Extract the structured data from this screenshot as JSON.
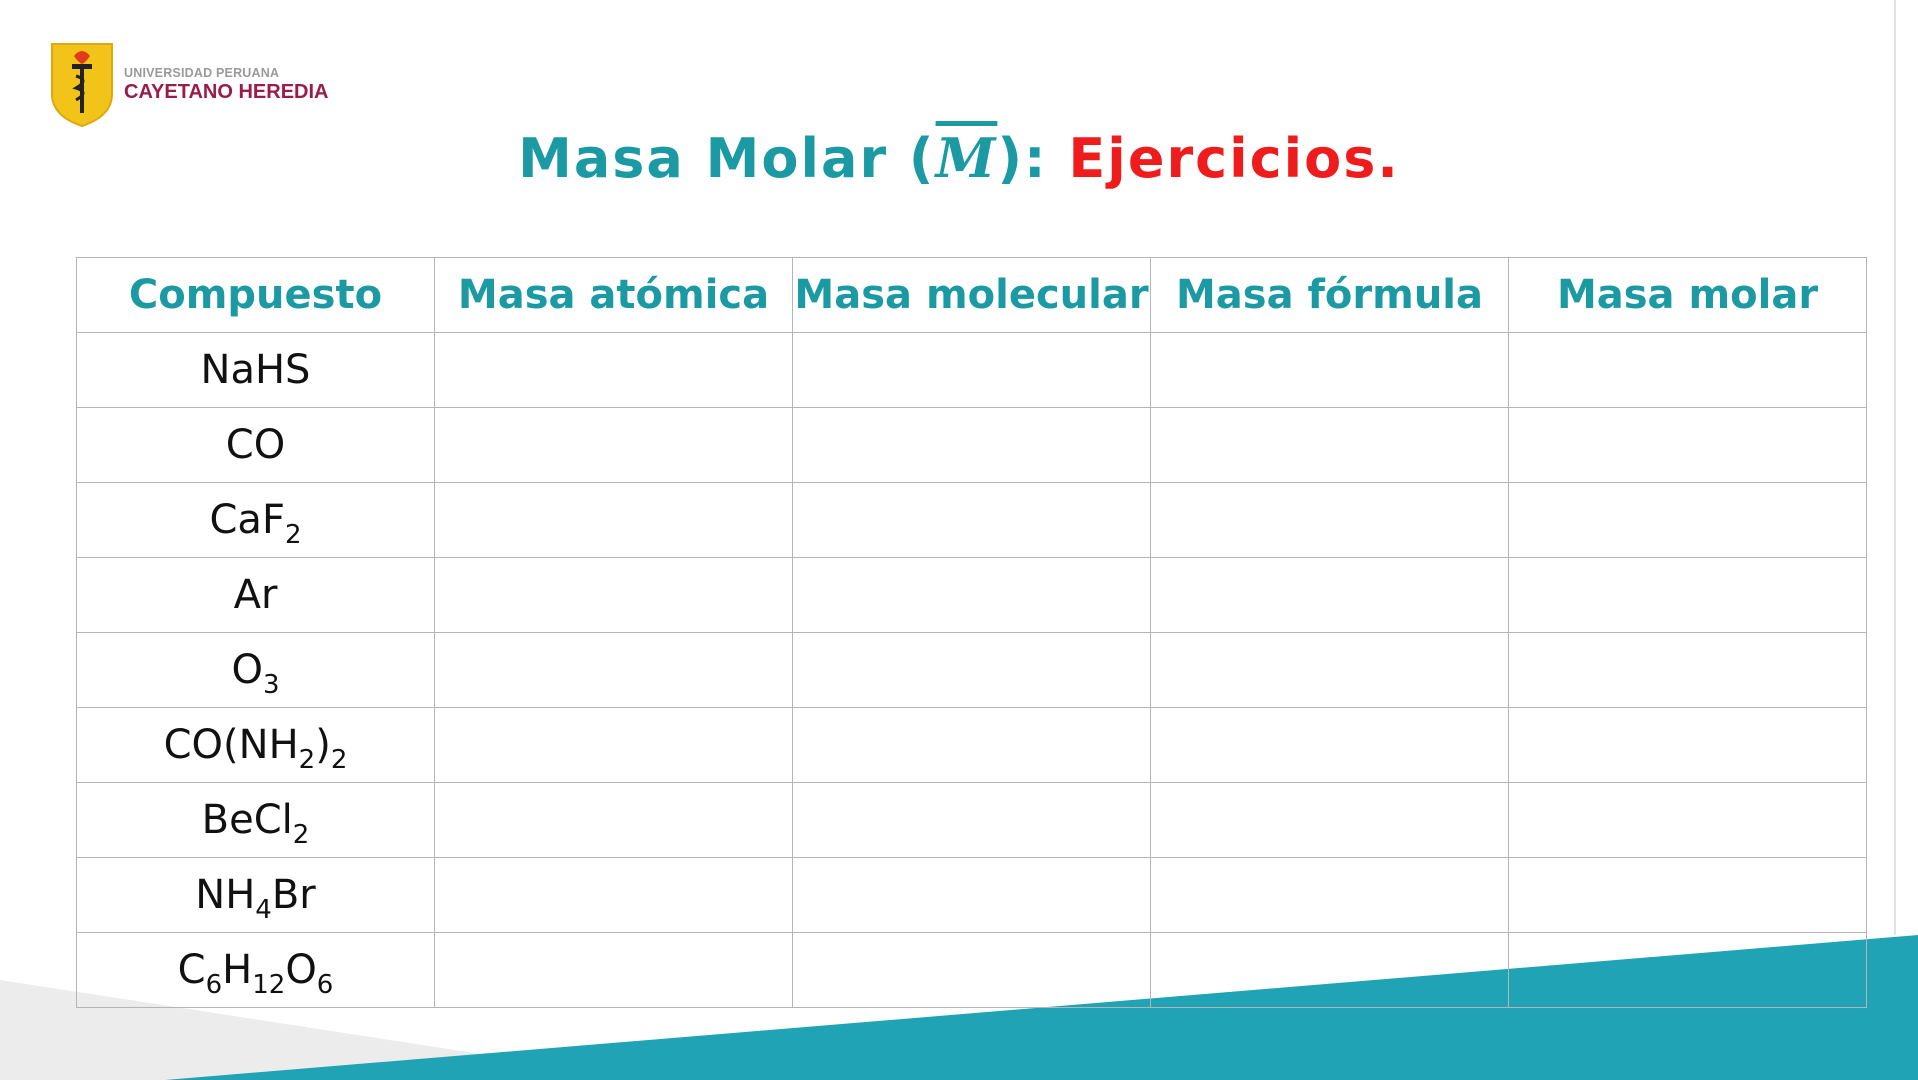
{
  "logo": {
    "line1": "UNIVERSIDAD PERUANA",
    "line2": "CAYETANO HEREDIA"
  },
  "title": {
    "part1": "Masa Molar (",
    "symbol": "M",
    "part2": "): ",
    "part3": "Ejercicios."
  },
  "colors": {
    "teal": "#1b9aa3",
    "red": "#ee1c1c",
    "band": "#1fa3b5",
    "logo_red": "#9a1c4a",
    "shield": "#f2c318"
  },
  "table": {
    "headers": [
      "Compuesto",
      "Masa atómica",
      "Masa molecular",
      "Masa fórmula",
      "Masa molar"
    ],
    "rows": [
      {
        "compound": [
          {
            "t": "NaHS"
          }
        ]
      },
      {
        "compound": [
          {
            "t": "CO"
          }
        ]
      },
      {
        "compound": [
          {
            "t": "CaF"
          },
          {
            "s": "2"
          }
        ]
      },
      {
        "compound": [
          {
            "t": "Ar"
          }
        ]
      },
      {
        "compound": [
          {
            "t": "O"
          },
          {
            "s": "3"
          }
        ]
      },
      {
        "compound": [
          {
            "t": "CO(NH"
          },
          {
            "s": "2"
          },
          {
            "t": ")"
          },
          {
            "s": "2"
          }
        ]
      },
      {
        "compound": [
          {
            "t": "BeCl"
          },
          {
            "s": "2"
          }
        ]
      },
      {
        "compound": [
          {
            "t": "NH"
          },
          {
            "s": "4"
          },
          {
            "t": "Br"
          }
        ]
      },
      {
        "compound": [
          {
            "t": "C"
          },
          {
            "s": "6"
          },
          {
            "t": "H"
          },
          {
            "s": "12"
          },
          {
            "t": "O"
          },
          {
            "s": "6"
          }
        ]
      }
    ]
  }
}
